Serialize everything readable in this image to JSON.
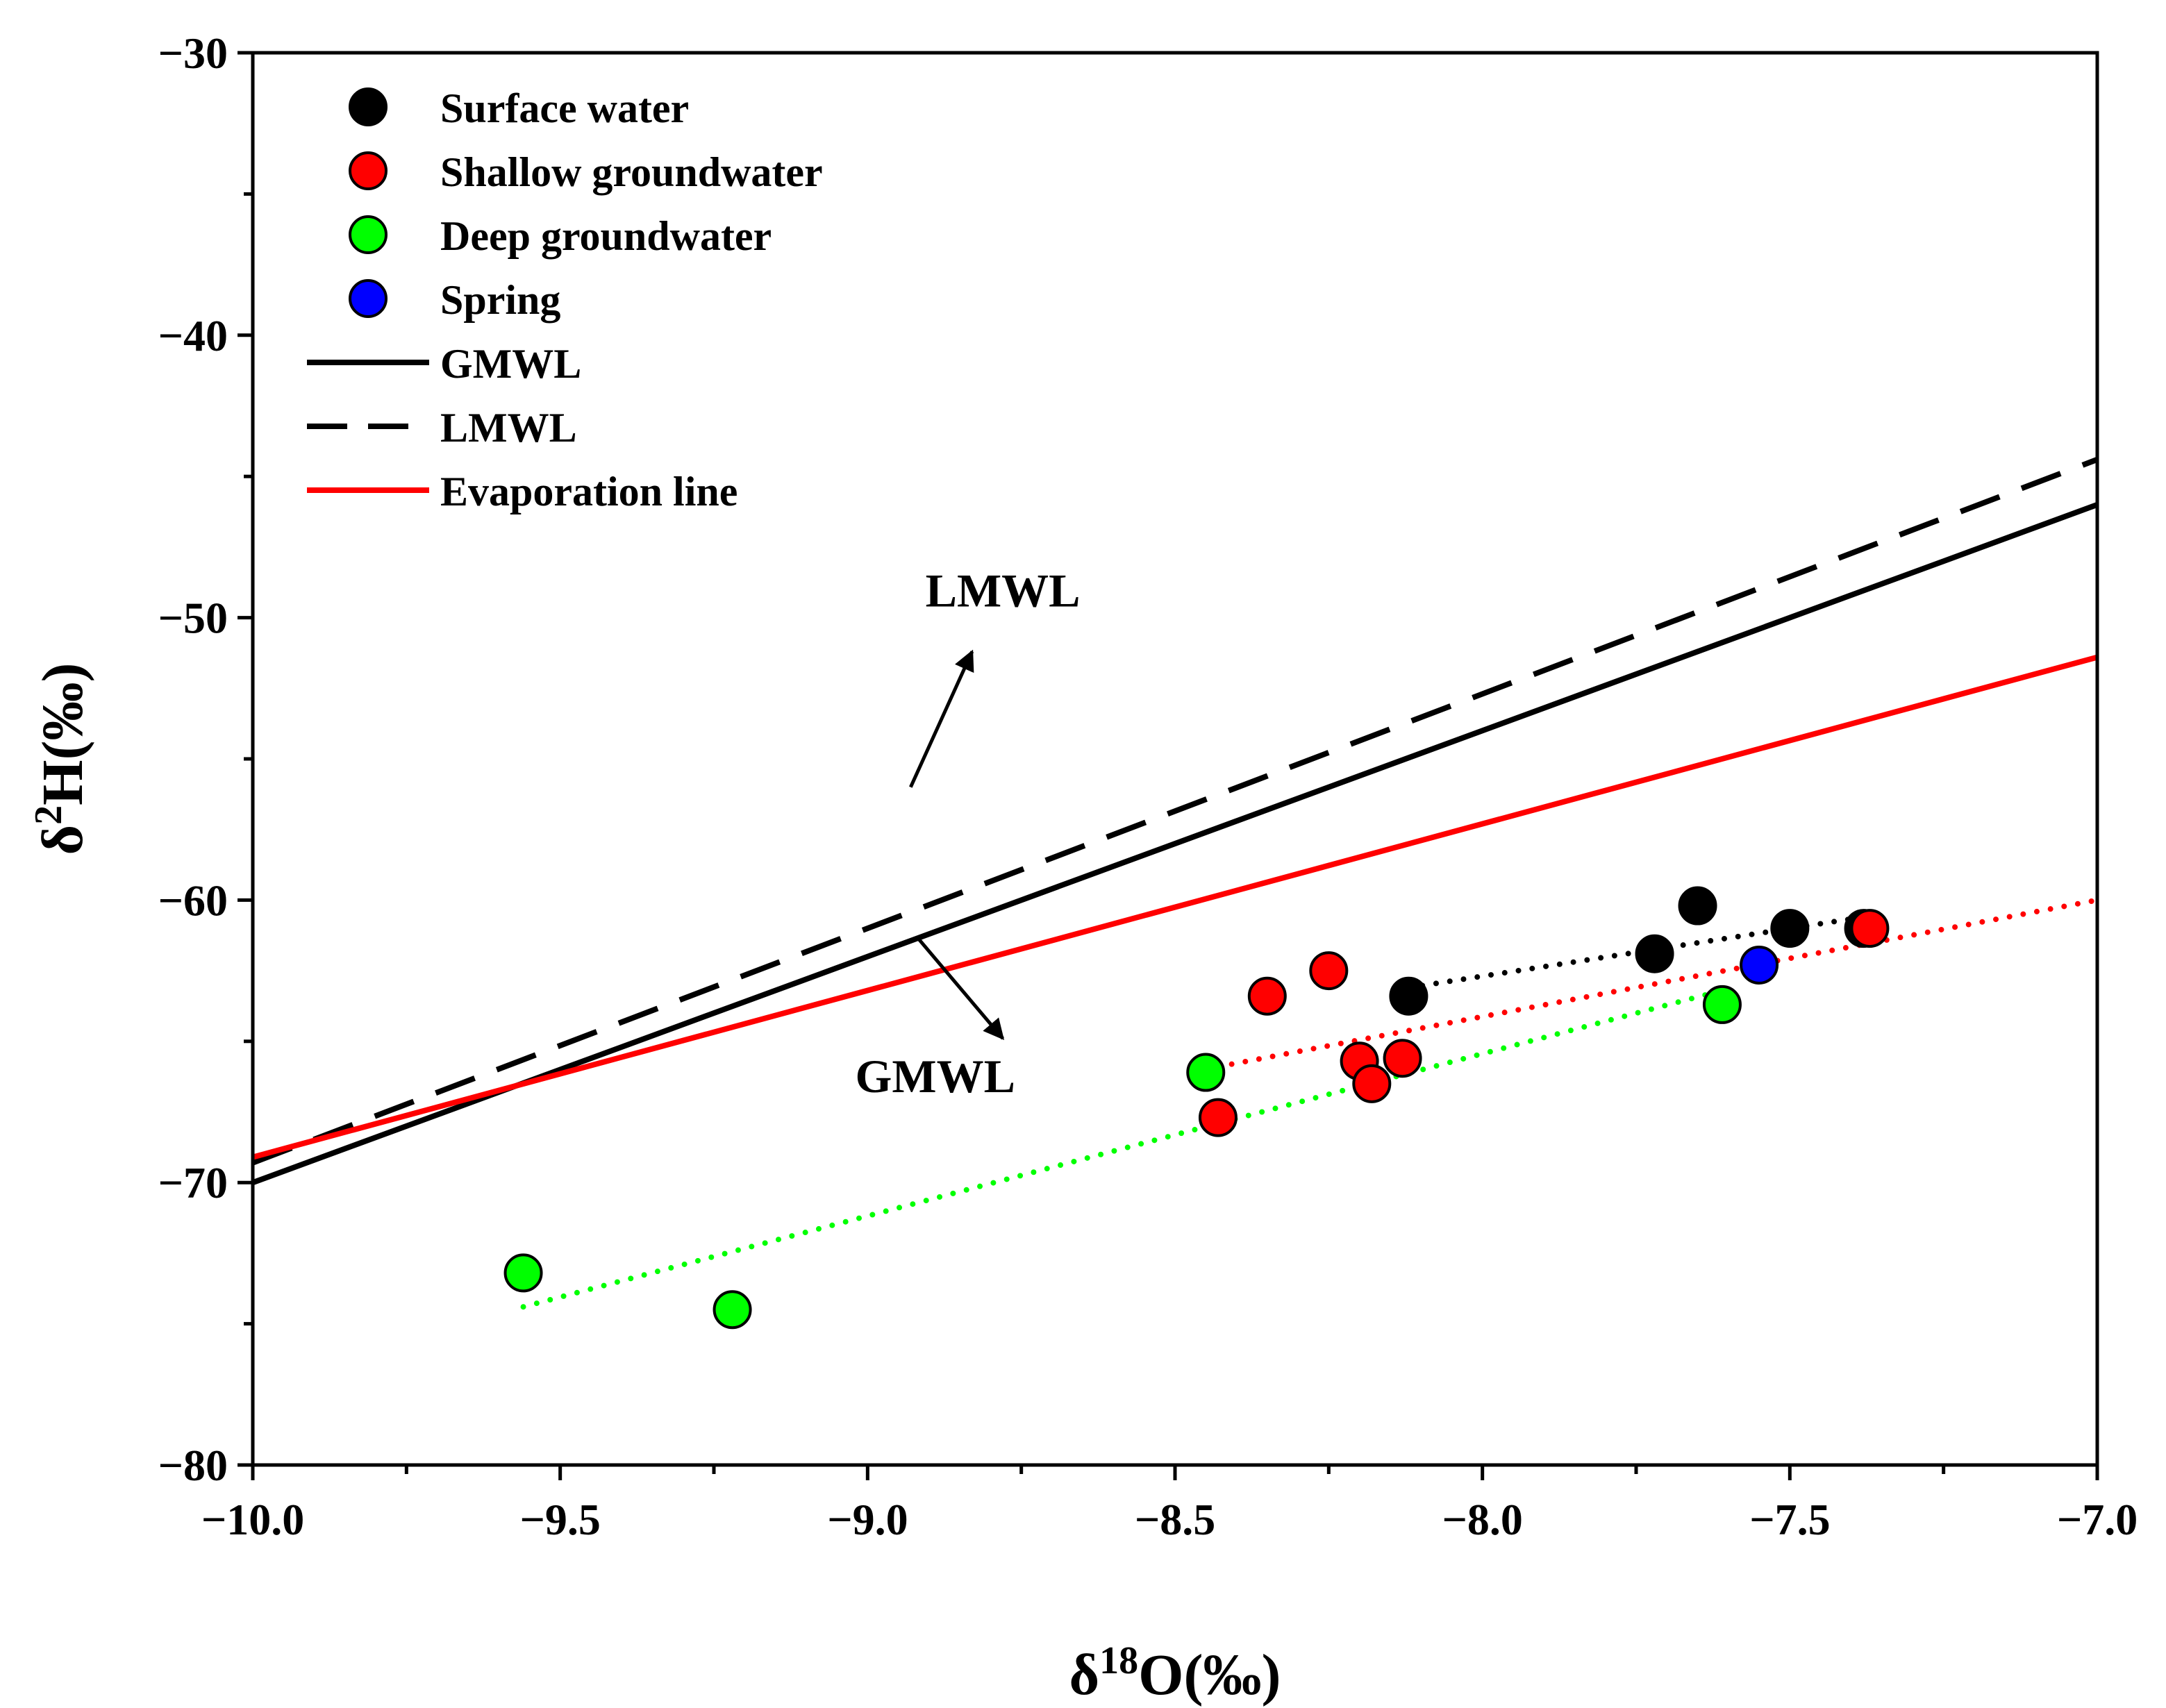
{
  "chart_data": {
    "type": "scatter",
    "xlim": [
      -10.0,
      -7.0
    ],
    "ylim": [
      -80,
      -30
    ],
    "xticks": [
      -10.0,
      -9.5,
      -9.0,
      -8.5,
      -8.0,
      -7.5,
      -7.0
    ],
    "xtick_labels": [
      "−10.0",
      "−9.5",
      "−9.0",
      "−8.5",
      "−8.0",
      "−7.5",
      "−7.0"
    ],
    "yticks": [
      -80,
      -70,
      -60,
      -50,
      -40,
      -30
    ],
    "ytick_labels": [
      "−80",
      "−70",
      "−60",
      "−50",
      "−40",
      "−30"
    ],
    "xlabel": {
      "base": "δ",
      "sup": "18",
      "rest": "O(‰)"
    },
    "ylabel": {
      "base": "δ",
      "sup": "2",
      "rest": "H(‰)"
    },
    "series": [
      {
        "name": "Surface water",
        "color": "#000000",
        "points": [
          [
            -8.12,
            -63.4
          ],
          [
            -7.72,
            -61.9
          ],
          [
            -7.65,
            -60.2
          ],
          [
            -7.5,
            -61.0
          ],
          [
            -7.38,
            -61.0
          ]
        ]
      },
      {
        "name": "Shallow groundwater",
        "color": "#ff0000",
        "points": [
          [
            -8.35,
            -63.4
          ],
          [
            -8.25,
            -62.5
          ],
          [
            -8.2,
            -65.7
          ],
          [
            -8.13,
            -65.6
          ],
          [
            -8.18,
            -66.5
          ],
          [
            -8.43,
            -67.7
          ],
          [
            -7.37,
            -61.0
          ]
        ]
      },
      {
        "name": "Deep groundwater",
        "color": "#00ff00",
        "points": [
          [
            -9.56,
            -73.2
          ],
          [
            -9.22,
            -74.5
          ],
          [
            -8.45,
            -66.1
          ],
          [
            -7.61,
            -63.7
          ]
        ]
      },
      {
        "name": "Spring",
        "color": "#0000ff",
        "points": [
          [
            -7.55,
            -62.3
          ]
        ]
      }
    ],
    "lines": [
      {
        "name": "GMWL",
        "color": "#000000",
        "style": "solid",
        "slope": 8,
        "intercept": 10
      },
      {
        "name": "LMWL",
        "color": "#000000",
        "style": "dashed",
        "x_range": [
          -10.0,
          -7.0
        ],
        "y_range": [
          -69.3,
          -44.4
        ]
      },
      {
        "name": "Evaporation line",
        "color": "#ff0000",
        "style": "solid",
        "x_range": [
          -10.0,
          -7.0
        ],
        "y_range": [
          -69.1,
          -51.4
        ]
      }
    ],
    "trend_lines": [
      {
        "color": "#000000",
        "x_range": [
          -8.12,
          -7.38
        ],
        "y_range": [
          -63.1,
          -60.6
        ]
      },
      {
        "color": "#ff0000",
        "x_range": [
          -8.43,
          -7.0
        ],
        "y_range": [
          -65.9,
          -60.0
        ]
      },
      {
        "color": "#00ff00",
        "x_range": [
          -9.56,
          -7.61
        ],
        "y_range": [
          -74.4,
          -63.2
        ]
      }
    ],
    "annotations": [
      {
        "text": "LMWL",
        "at": [
          -8.78,
          -49.6
        ],
        "arrow_from": [
          -8.93,
          -56.0
        ],
        "arrow_to": [
          -8.83,
          -51.2
        ]
      },
      {
        "text": "GMWL",
        "at": [
          -8.89,
          -66.8
        ],
        "arrow_from": [
          -8.92,
          -61.3
        ],
        "arrow_to": [
          -8.78,
          -64.9
        ]
      }
    ],
    "legend_position": "top-left"
  }
}
